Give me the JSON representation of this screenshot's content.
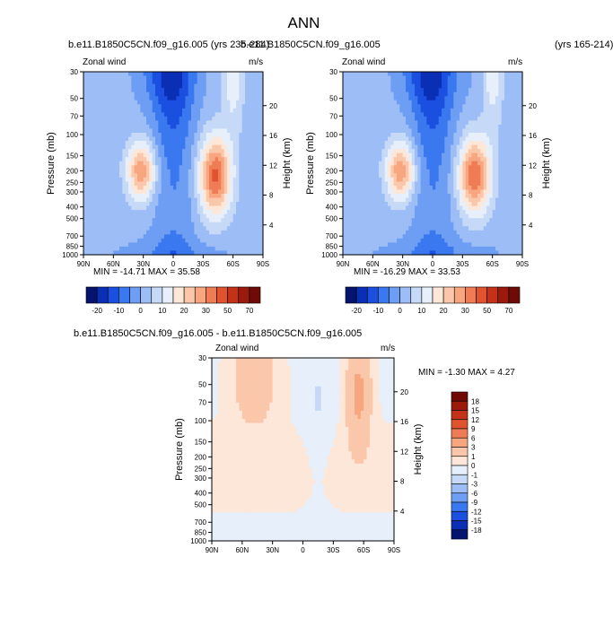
{
  "page": {
    "title": "ANN"
  },
  "colors": {
    "diverging_palette": [
      "#05146e",
      "#0a2fb4",
      "#1b4fe0",
      "#3a78f0",
      "#6d9ef4",
      "#9cbdf6",
      "#c6daf8",
      "#e6effa",
      "#fde7d8",
      "#fbc7aa",
      "#f8a67f",
      "#f07c56",
      "#e0532f",
      "#c33216",
      "#9a1a0c",
      "#6e0b06"
    ],
    "axis": "#000000"
  },
  "chart_data": [
    {
      "id": "panel-1",
      "type": "heatmap",
      "title": "b.e11.B1850C5CN.f09_g16.005 (yrs 235-284)",
      "variable": "Zonal wind",
      "units": "m/s",
      "ylabel": "Pressure (mb)",
      "ylabel_right": "Height (km)",
      "x_ticks": [
        "90N",
        "60N",
        "30N",
        "0",
        "30S",
        "60S",
        "90S"
      ],
      "y_ticks": [
        "30",
        "50",
        "70",
        "100",
        "150",
        "200",
        "250",
        "300",
        "400",
        "500",
        "700",
        "850",
        "1000"
      ],
      "y_right_ticks": [
        "20",
        "16",
        "12",
        "8",
        "4"
      ],
      "stats_text": "MIN = -14.71  MAX =  35.58",
      "min": -14.71,
      "max": 35.58,
      "levels": [
        -20,
        -15,
        -10,
        -5,
        0,
        5,
        10,
        15,
        20,
        25,
        30,
        35,
        40,
        50,
        60,
        70
      ],
      "colorbar_labels": [
        "-20",
        "-10",
        "0",
        "10",
        "20",
        "30",
        "50",
        "70"
      ]
    },
    {
      "id": "panel-2",
      "type": "heatmap",
      "title": "b.e11.B1850C5CN.f09_g16.005",
      "title_right": "(yrs 165-214)",
      "variable": "Zonal wind",
      "units": "m/s",
      "ylabel": "Pressure (mb)",
      "ylabel_right": "Height (km)",
      "x_ticks": [
        "90N",
        "60N",
        "30N",
        "0",
        "30S",
        "60S",
        "90S"
      ],
      "y_ticks": [
        "30",
        "50",
        "70",
        "100",
        "150",
        "200",
        "250",
        "300",
        "400",
        "500",
        "700",
        "850",
        "1000"
      ],
      "y_right_ticks": [
        "20",
        "16",
        "12",
        "8",
        "4"
      ],
      "stats_text": "MIN = -16.29  MAX =  33.53",
      "min": -16.29,
      "max": 33.53,
      "levels": [
        -20,
        -15,
        -10,
        -5,
        0,
        5,
        10,
        15,
        20,
        25,
        30,
        35,
        40,
        50,
        60,
        70
      ],
      "colorbar_labels": [
        "-20",
        "-10",
        "0",
        "10",
        "20",
        "30",
        "50",
        "70"
      ]
    },
    {
      "id": "panel-diff",
      "type": "heatmap",
      "title": "b.e11.B1850C5CN.f09_g16.005 - b.e11.B1850C5CN.f09_g16.005",
      "variable": "Zonal wind",
      "units": "m/s",
      "ylabel": "Pressure (mb)",
      "ylabel_right": "Height (km)",
      "x_ticks": [
        "90N",
        "60N",
        "30N",
        "0",
        "30S",
        "60S",
        "90S"
      ],
      "y_ticks": [
        "30",
        "50",
        "70",
        "100",
        "150",
        "200",
        "250",
        "300",
        "400",
        "500",
        "700",
        "850",
        "1000"
      ],
      "y_right_ticks": [
        "20",
        "16",
        "12",
        "8",
        "4"
      ],
      "stats_text": "MIN = -1.30  MAX =  4.27",
      "min": -1.3,
      "max": 4.27,
      "levels": [
        -18,
        -15,
        -12,
        -9,
        -6,
        -3,
        -1,
        0,
        1,
        3,
        6,
        9,
        12,
        15,
        18
      ],
      "colorbar_labels": [
        "18",
        "15",
        "12",
        "9",
        "6",
        "3",
        "1",
        "0",
        "-1",
        "-3",
        "-6",
        "-9",
        "-12",
        "-15",
        "-18"
      ]
    }
  ]
}
